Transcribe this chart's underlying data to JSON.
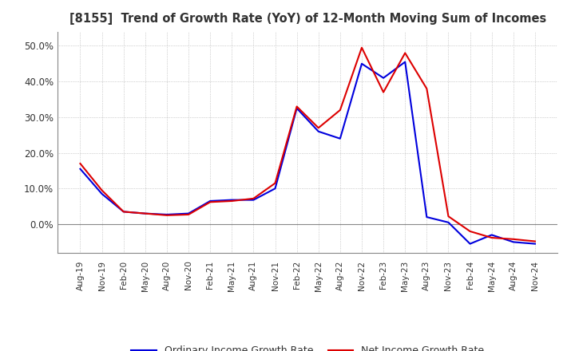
{
  "title": "[8155]  Trend of Growth Rate (YoY) of 12-Month Moving Sum of Incomes",
  "ylim": [
    -0.08,
    0.54
  ],
  "yticks": [
    0.0,
    0.1,
    0.2,
    0.3,
    0.4,
    0.5
  ],
  "background_color": "#ffffff",
  "grid_color": "#aaaaaa",
  "ordinary_color": "#0000dd",
  "net_color": "#dd0000",
  "x_labels": [
    "Aug-19",
    "Nov-19",
    "Feb-20",
    "May-20",
    "Aug-20",
    "Nov-20",
    "Feb-21",
    "May-21",
    "Aug-21",
    "Nov-21",
    "Feb-22",
    "May-22",
    "Aug-22",
    "Nov-22",
    "Feb-23",
    "May-23",
    "Aug-23",
    "Nov-23",
    "Feb-24",
    "May-24",
    "Aug-24",
    "Nov-24"
  ],
  "ordinary_income": [
    0.155,
    0.085,
    0.035,
    0.03,
    0.027,
    0.03,
    0.065,
    0.068,
    0.068,
    0.1,
    0.325,
    0.26,
    0.24,
    0.45,
    0.41,
    0.455,
    0.02,
    0.005,
    -0.055,
    -0.03,
    -0.05,
    -0.055
  ],
  "net_income": [
    0.17,
    0.095,
    0.035,
    0.03,
    0.025,
    0.027,
    0.062,
    0.065,
    0.072,
    0.115,
    0.33,
    0.27,
    0.32,
    0.495,
    0.37,
    0.48,
    0.38,
    0.022,
    -0.02,
    -0.038,
    -0.042,
    -0.048
  ],
  "legend_ordinary": "Ordinary Income Growth Rate",
  "legend_net": "Net Income Growth Rate"
}
